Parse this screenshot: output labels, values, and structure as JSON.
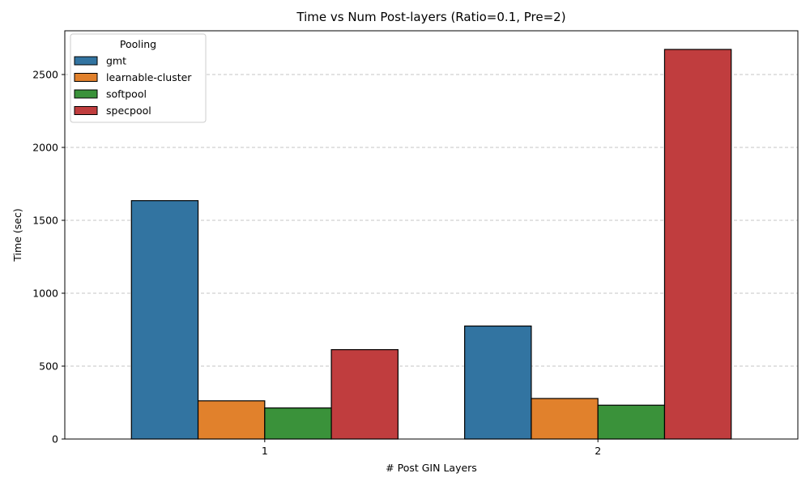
{
  "chart_data": {
    "type": "bar",
    "title": "Time vs Num Post-layers (Ratio=0.1, Pre=2)",
    "xlabel": "# Post GIN Layers",
    "ylabel": "Time (sec)",
    "categories": [
      "1",
      "2"
    ],
    "ylim": [
      0,
      2800
    ],
    "yticks": [
      0,
      500,
      1000,
      1500,
      2000,
      2500
    ],
    "grid": "y-dashed",
    "legend": {
      "title": "Pooling",
      "placement": "top-left"
    },
    "series": [
      {
        "name": "gmt",
        "color": "#3274a1",
        "values": [
          1635,
          775
        ]
      },
      {
        "name": "learnable-cluster",
        "color": "#e1812c",
        "values": [
          262,
          278
        ]
      },
      {
        "name": "softpool",
        "color": "#3a923a",
        "values": [
          213,
          232
        ]
      },
      {
        "name": "specpool",
        "color": "#c03d3e",
        "values": [
          613,
          2672
        ]
      }
    ]
  }
}
